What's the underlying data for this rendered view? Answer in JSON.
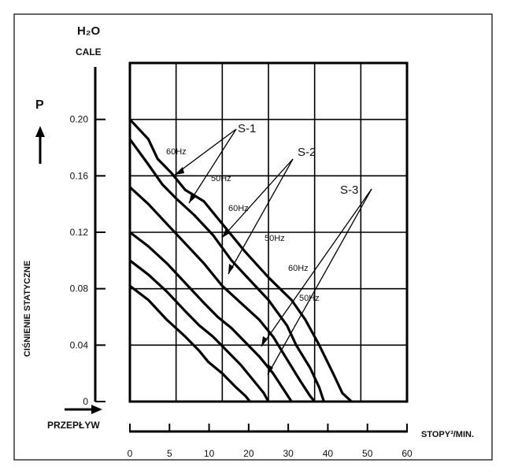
{
  "chart_data": {
    "type": "line",
    "y_unit_top": "H₂O",
    "y_unit_bottom": "CALE",
    "y_symbol": "P",
    "ylabel": "CIŚNIENIE STATYCZNE",
    "xlabel_left": "PRZEPŁYW",
    "xlabel_right": "STOPY³/MIN.",
    "xlim": [
      0,
      60
    ],
    "ylim": [
      0,
      0.24
    ],
    "x_ticks": [
      "0",
      "5",
      "10",
      "20",
      "30",
      "40",
      "50",
      "60"
    ],
    "y_ticks": [
      "0",
      "0.04",
      "0.08",
      "0.12",
      "0.16",
      "0.20"
    ],
    "grid": true,
    "series": [
      {
        "name": "S-1 60Hz",
        "points": [
          [
            0,
            0.2
          ],
          [
            4,
            0.186
          ],
          [
            6,
            0.172
          ],
          [
            9,
            0.162
          ],
          [
            12,
            0.15
          ],
          [
            16,
            0.142
          ],
          [
            20,
            0.126
          ],
          [
            25,
            0.106
          ],
          [
            30,
            0.088
          ],
          [
            35,
            0.072
          ],
          [
            38,
            0.058
          ],
          [
            41,
            0.04
          ],
          [
            44,
            0.02
          ],
          [
            46,
            0.006
          ],
          [
            48,
            0
          ]
        ]
      },
      {
        "name": "S-1 50Hz",
        "points": [
          [
            0,
            0.186
          ],
          [
            4,
            0.168
          ],
          [
            7,
            0.154
          ],
          [
            10,
            0.144
          ],
          [
            14,
            0.132
          ],
          [
            18,
            0.118
          ],
          [
            22,
            0.1
          ],
          [
            26,
            0.086
          ],
          [
            30,
            0.072
          ],
          [
            34,
            0.054
          ],
          [
            36,
            0.04
          ],
          [
            39,
            0.024
          ],
          [
            41,
            0.01
          ],
          [
            42,
            0
          ]
        ]
      },
      {
        "name": "S-2 60Hz",
        "points": [
          [
            0,
            0.152
          ],
          [
            4,
            0.14
          ],
          [
            8,
            0.126
          ],
          [
            12,
            0.112
          ],
          [
            16,
            0.098
          ],
          [
            20,
            0.082
          ],
          [
            24,
            0.07
          ],
          [
            28,
            0.058
          ],
          [
            31,
            0.046
          ],
          [
            34,
            0.03
          ],
          [
            37,
            0.014
          ],
          [
            39,
            0.004
          ],
          [
            40,
            0
          ]
        ]
      },
      {
        "name": "S-2 50Hz",
        "points": [
          [
            0,
            0.12
          ],
          [
            4,
            0.11
          ],
          [
            8,
            0.098
          ],
          [
            12,
            0.084
          ],
          [
            16,
            0.07
          ],
          [
            19,
            0.06
          ],
          [
            22,
            0.052
          ],
          [
            25,
            0.042
          ],
          [
            28,
            0.032
          ],
          [
            31,
            0.02
          ],
          [
            33,
            0.01
          ],
          [
            35,
            0
          ]
        ]
      },
      {
        "name": "S-3 60Hz",
        "points": [
          [
            0,
            0.1
          ],
          [
            4,
            0.09
          ],
          [
            8,
            0.078
          ],
          [
            12,
            0.064
          ],
          [
            15,
            0.054
          ],
          [
            18,
            0.046
          ],
          [
            21,
            0.036
          ],
          [
            24,
            0.026
          ],
          [
            27,
            0.014
          ],
          [
            29,
            0.006
          ],
          [
            30,
            0
          ]
        ]
      },
      {
        "name": "S-3 50Hz",
        "points": [
          [
            0,
            0.082
          ],
          [
            4,
            0.072
          ],
          [
            8,
            0.058
          ],
          [
            12,
            0.046
          ],
          [
            15,
            0.036
          ],
          [
            17,
            0.028
          ],
          [
            20,
            0.02
          ],
          [
            23,
            0.01
          ],
          [
            25,
            0.004
          ],
          [
            26,
            0
          ]
        ]
      }
    ],
    "annotations": [
      "S-1",
      "S-2",
      "S-3",
      "60Hz",
      "50Hz",
      "60Hz",
      "50Hz",
      "60Hz",
      "50Hz"
    ]
  }
}
